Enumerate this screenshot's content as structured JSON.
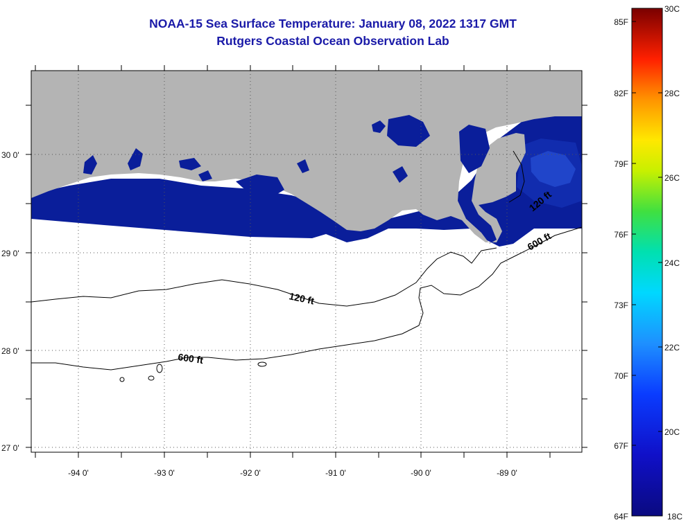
{
  "title": {
    "line1": "NOAA-15 Sea Surface Temperature:  January 08, 2022 1317 GMT",
    "line2": "Rutgers Coastal Ocean Observation Lab"
  },
  "map": {
    "longitude_labels": [
      "-94 0'",
      "-93 0'",
      "-92 0'",
      "-91 0'",
      "-90 0'",
      "-89 0'"
    ],
    "latitude_labels": [
      "30 0'",
      "29 0'",
      "28 0'",
      "27 0'"
    ],
    "contour_labels": [
      "120 ft",
      "600 ft",
      "120 ft",
      "600 ft"
    ],
    "colors": {
      "land": "#b4b4b4",
      "sst_dark": "#0a1e9a",
      "ocean_nodata": "#ffffff"
    }
  },
  "colorbar": {
    "fahrenheit_labels": [
      "85F",
      "82F",
      "79F",
      "76F",
      "73F",
      "70F",
      "67F",
      "64F"
    ],
    "celsius_labels": [
      "30C",
      "28C",
      "26C",
      "24C",
      "22C",
      "20C",
      "18C"
    ]
  }
}
